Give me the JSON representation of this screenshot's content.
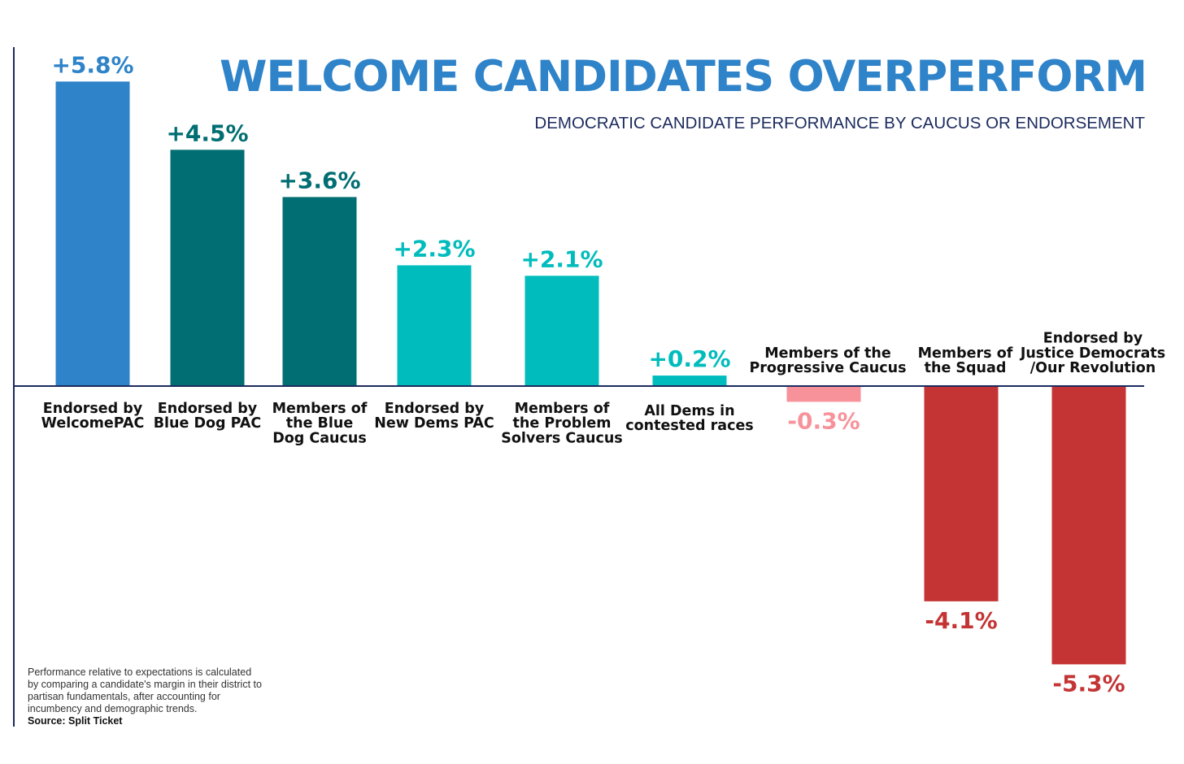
{
  "chart_data": {
    "type": "bar",
    "title": "WELCOME CANDIDATES OVERPERFORM",
    "subtitle": "DEMOCRATIC CANDIDATE PERFORMANCE BY CAUCUS OR ENDORSEMENT",
    "categories": [
      [
        "Endorsed by",
        "WelcomePAC"
      ],
      [
        "Endorsed by",
        "Blue Dog PAC"
      ],
      [
        "Members of",
        "the Blue",
        "Dog Caucus"
      ],
      [
        "Endorsed by",
        "New Dems PAC"
      ],
      [
        "Members of",
        "the Problem",
        "Solvers Caucus"
      ],
      [
        "All Dems in",
        "contested races"
      ],
      [
        "Members of the",
        "Progressive Caucus"
      ],
      [
        "Members of",
        "the Squad"
      ],
      [
        "Endorsed by",
        "Justice Democrats",
        "/Our Revolution"
      ]
    ],
    "values": [
      5.8,
      4.5,
      3.6,
      2.3,
      2.1,
      0.2,
      -0.3,
      -4.1,
      -5.3
    ],
    "value_labels": [
      "+5.8%",
      "+4.5%",
      "+3.6%",
      "+2.3%",
      "+2.1%",
      "+0.2%",
      "-0.3%",
      "-4.1%",
      "-5.3%"
    ],
    "colors": [
      "#2e83c9",
      "#006e72",
      "#006e72",
      "#00bcbc",
      "#00bcbc",
      "#00bcbc",
      "#f7929a",
      "#c43434",
      "#c43434"
    ],
    "label_colors": [
      "#2e83c9",
      "#006e72",
      "#006e72",
      "#00bcbc",
      "#00bcbc",
      "#00bcbc",
      "#f7929a",
      "#c43434",
      "#c43434"
    ],
    "ylim": [
      -6,
      6
    ],
    "xlabel": "",
    "ylabel": "",
    "grid": false
  },
  "footnote": [
    "Performance relative to expectations is calculated",
    "by comparing a candidate's margin in their district to",
    "partisan fundamentals, after accounting for",
    "incumbency and demographic trends."
  ],
  "source": "Source: Split Ticket",
  "colors": {
    "title": "#2e83c9",
    "subtitle": "#1c2b5e",
    "axis": "#1c2b5e",
    "text": "#111111"
  }
}
